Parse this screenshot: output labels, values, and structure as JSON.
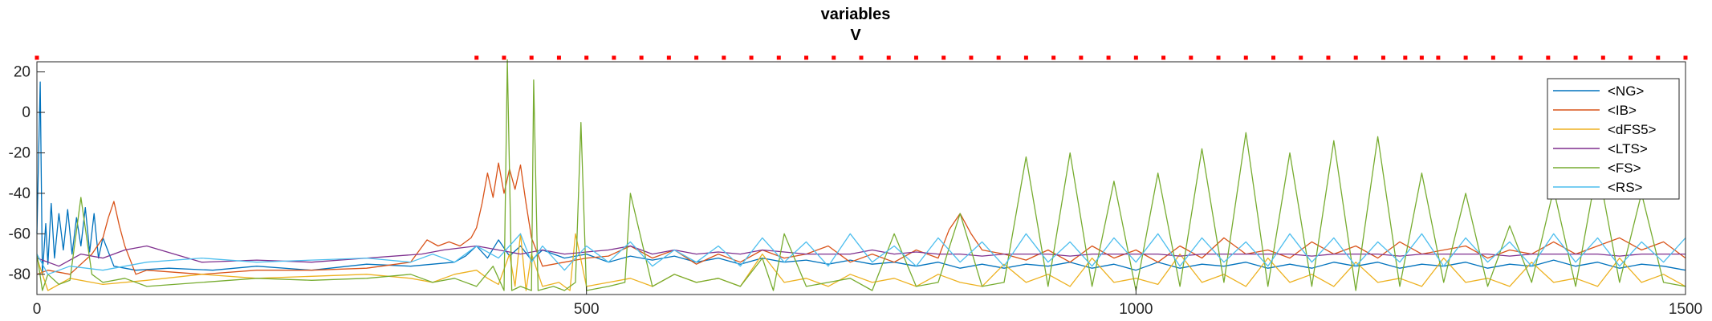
{
  "chart_data": {
    "type": "line",
    "title": "variables",
    "subtitle": "V",
    "xlabel": "",
    "ylabel": "",
    "xlim": [
      0,
      1500
    ],
    "ylim": [
      -90,
      25
    ],
    "x_ticks": [
      0,
      500,
      1000,
      1500
    ],
    "y_ticks": [
      20,
      0,
      -20,
      -40,
      -60,
      -80
    ],
    "grid": false,
    "legend_position": "top-right",
    "marker_series": {
      "color": "#ff0000",
      "y": 27,
      "x": [
        0,
        400,
        425,
        450,
        475,
        500,
        525,
        550,
        575,
        600,
        625,
        650,
        675,
        700,
        725,
        750,
        775,
        800,
        825,
        850,
        875,
        900,
        925,
        950,
        975,
        1000,
        1025,
        1050,
        1075,
        1100,
        1125,
        1150,
        1175,
        1200,
        1225,
        1245,
        1260,
        1275,
        1300,
        1325,
        1350,
        1375,
        1400,
        1425,
        1450,
        1475,
        1500
      ]
    },
    "series": [
      {
        "name": "<NG>",
        "color": "#0072bd",
        "x": [
          0,
          3,
          5,
          8,
          10,
          13,
          16,
          20,
          24,
          28,
          32,
          36,
          40,
          44,
          48,
          52,
          56,
          60,
          70,
          90,
          120,
          160,
          200,
          250,
          300,
          340,
          380,
          390,
          400,
          410,
          420,
          430,
          440,
          450,
          460,
          480,
          500,
          520,
          540,
          560,
          580,
          600,
          620,
          640,
          660,
          680,
          700,
          720,
          740,
          760,
          780,
          800,
          820,
          840,
          860,
          880,
          900,
          920,
          940,
          960,
          980,
          1000,
          1020,
          1040,
          1060,
          1080,
          1100,
          1120,
          1140,
          1160,
          1180,
          1200,
          1220,
          1240,
          1260,
          1280,
          1300,
          1320,
          1340,
          1360,
          1380,
          1400,
          1420,
          1440,
          1460,
          1480,
          1500
        ],
        "values": [
          -60,
          15,
          -80,
          -55,
          -75,
          -45,
          -72,
          -50,
          -68,
          -48,
          -70,
          -52,
          -66,
          -47,
          -69,
          -50,
          -72,
          -62,
          -76,
          -78,
          -77,
          -78,
          -76,
          -78,
          -75,
          -76,
          -74,
          -71,
          -66,
          -72,
          -63,
          -71,
          -66,
          -73,
          -68,
          -72,
          -70,
          -74,
          -71,
          -73,
          -71,
          -74,
          -72,
          -75,
          -72,
          -74,
          -73,
          -75,
          -73,
          -75,
          -74,
          -76,
          -74,
          -77,
          -75,
          -77,
          -75,
          -76,
          -74,
          -77,
          -75,
          -78,
          -74,
          -77,
          -75,
          -76,
          -74,
          -77,
          -75,
          -77,
          -74,
          -76,
          -74,
          -77,
          -75,
          -76,
          -74,
          -77,
          -75,
          -76,
          -73,
          -76,
          -74,
          -77,
          -75,
          -76,
          -78
        ]
      },
      {
        "name": "<IB>",
        "color": "#d95319",
        "x": [
          0,
          10,
          30,
          50,
          60,
          65,
          70,
          75,
          80,
          90,
          100,
          150,
          200,
          250,
          300,
          340,
          355,
          365,
          375,
          385,
          395,
          400,
          405,
          410,
          415,
          420,
          425,
          430,
          435,
          440,
          445,
          450,
          460,
          480,
          500,
          520,
          540,
          560,
          580,
          600,
          620,
          640,
          660,
          680,
          700,
          720,
          740,
          760,
          780,
          800,
          820,
          830,
          840,
          850,
          860,
          880,
          900,
          920,
          940,
          960,
          980,
          1000,
          1020,
          1040,
          1060,
          1080,
          1100,
          1120,
          1140,
          1160,
          1180,
          1200,
          1220,
          1240,
          1260,
          1280,
          1300,
          1320,
          1340,
          1360,
          1380,
          1400,
          1420,
          1440,
          1460,
          1480,
          1500
        ],
        "values": [
          -80,
          -78,
          -80,
          -70,
          -62,
          -52,
          -44,
          -56,
          -66,
          -80,
          -78,
          -80,
          -78,
          -78,
          -77,
          -74,
          -63,
          -66,
          -64,
          -66,
          -62,
          -57,
          -45,
          -30,
          -42,
          -25,
          -40,
          -28,
          -38,
          -26,
          -45,
          -62,
          -76,
          -74,
          -72,
          -71,
          -66,
          -72,
          -68,
          -75,
          -70,
          -74,
          -68,
          -72,
          -70,
          -66,
          -74,
          -70,
          -74,
          -68,
          -72,
          -58,
          -50,
          -60,
          -68,
          -70,
          -73,
          -68,
          -74,
          -66,
          -72,
          -68,
          -74,
          -66,
          -72,
          -62,
          -70,
          -68,
          -72,
          -64,
          -70,
          -66,
          -72,
          -64,
          -70,
          -68,
          -66,
          -72,
          -68,
          -70,
          -64,
          -70,
          -66,
          -62,
          -68,
          -64,
          -72
        ]
      },
      {
        "name": "<dFS5>",
        "color": "#edb120",
        "x": [
          0,
          10,
          30,
          60,
          100,
          150,
          200,
          250,
          300,
          340,
          360,
          380,
          400,
          410,
          420,
          430,
          435,
          440,
          445,
          450,
          460,
          475,
          485,
          490,
          500,
          520,
          540,
          560,
          580,
          600,
          620,
          640,
          660,
          680,
          700,
          720,
          740,
          760,
          780,
          800,
          820,
          840,
          860,
          880,
          900,
          920,
          940,
          960,
          980,
          1000,
          1020,
          1040,
          1060,
          1080,
          1100,
          1120,
          1140,
          1160,
          1180,
          1200,
          1220,
          1240,
          1260,
          1280,
          1300,
          1320,
          1340,
          1360,
          1380,
          1400,
          1420,
          1440,
          1460,
          1480,
          1500
        ],
        "values": [
          -72,
          -88,
          -82,
          -85,
          -83,
          -80,
          -82,
          -81,
          -80,
          -82,
          -84,
          -80,
          -78,
          -82,
          -85,
          -70,
          -86,
          -60,
          -88,
          -70,
          -86,
          -84,
          -88,
          -60,
          -86,
          -84,
          -82,
          -86,
          -80,
          -84,
          -82,
          -86,
          -70,
          -84,
          -82,
          -86,
          -80,
          -84,
          -82,
          -86,
          -80,
          -84,
          -86,
          -75,
          -84,
          -80,
          -86,
          -72,
          -84,
          -82,
          -85,
          -70,
          -84,
          -80,
          -86,
          -72,
          -84,
          -80,
          -86,
          -74,
          -84,
          -82,
          -86,
          -72,
          -84,
          -82,
          -86,
          -74,
          -84,
          -82,
          -86,
          -72,
          -84,
          -80,
          -86
        ]
      },
      {
        "name": "<LTS>",
        "color": "#7e2f8e",
        "x": [
          0,
          20,
          40,
          60,
          80,
          100,
          150,
          200,
          250,
          300,
          350,
          370,
          400,
          420,
          440,
          460,
          480,
          500,
          520,
          540,
          560,
          580,
          600,
          620,
          640,
          660,
          680,
          700,
          720,
          740,
          760,
          780,
          800,
          820,
          840,
          860,
          880,
          900,
          920,
          940,
          960,
          980,
          1000,
          1020,
          1040,
          1060,
          1080,
          1100,
          1120,
          1140,
          1160,
          1180,
          1200,
          1220,
          1240,
          1260,
          1280,
          1300,
          1320,
          1340,
          1360,
          1380,
          1400,
          1420,
          1440,
          1460,
          1480,
          1500
        ],
        "values": [
          -72,
          -76,
          -70,
          -72,
          -68,
          -66,
          -74,
          -73,
          -74,
          -72,
          -70,
          -68,
          -66,
          -68,
          -70,
          -68,
          -70,
          -69,
          -68,
          -66,
          -70,
          -68,
          -70,
          -69,
          -70,
          -68,
          -69,
          -70,
          -70,
          -70,
          -68,
          -70,
          -69,
          -70,
          -70,
          -71,
          -70,
          -70,
          -70,
          -71,
          -70,
          -70,
          -70,
          -70,
          -71,
          -70,
          -70,
          -70,
          -70,
          -70,
          -71,
          -70,
          -70,
          -70,
          -71,
          -70,
          -70,
          -70,
          -70,
          -71,
          -70,
          -70,
          -70,
          -70,
          -71,
          -70,
          -70,
          -70
        ]
      },
      {
        "name": "<FS>",
        "color": "#77ac30",
        "x": [
          0,
          5,
          10,
          20,
          30,
          40,
          50,
          60,
          80,
          100,
          150,
          200,
          250,
          300,
          340,
          360,
          380,
          400,
          415,
          425,
          428,
          432,
          440,
          450,
          452,
          456,
          470,
          480,
          490,
          495,
          500,
          520,
          535,
          540,
          560,
          580,
          600,
          620,
          640,
          660,
          670,
          680,
          700,
          720,
          740,
          760,
          780,
          800,
          820,
          840,
          860,
          880,
          900,
          920,
          940,
          960,
          980,
          1000,
          1020,
          1040,
          1060,
          1080,
          1100,
          1120,
          1140,
          1160,
          1180,
          1200,
          1220,
          1240,
          1260,
          1280,
          1300,
          1320,
          1340,
          1360,
          1380,
          1400,
          1420,
          1440,
          1460,
          1480,
          1500
        ],
        "values": [
          -70,
          -88,
          -80,
          -85,
          -83,
          -42,
          -80,
          -84,
          -82,
          -86,
          -84,
          -82,
          -83,
          -82,
          -80,
          -84,
          -82,
          -86,
          -76,
          -88,
          26,
          -88,
          -86,
          -88,
          16,
          -88,
          -86,
          -88,
          -84,
          -5,
          -88,
          -86,
          -84,
          -40,
          -86,
          -80,
          -84,
          -82,
          -86,
          -72,
          -88,
          -60,
          -86,
          -84,
          -82,
          -88,
          -60,
          -86,
          -84,
          -50,
          -86,
          -84,
          -22,
          -86,
          -20,
          -86,
          -34,
          -88,
          -30,
          -86,
          -18,
          -84,
          -10,
          -86,
          -20,
          -86,
          -14,
          -88,
          -12,
          -86,
          -30,
          -84,
          -40,
          -86,
          -56,
          -84,
          -38,
          -86,
          -26,
          -84,
          -40,
          -84,
          -86
        ]
      },
      {
        "name": "<RS>",
        "color": "#4dbeee",
        "x": [
          0,
          10,
          30,
          60,
          100,
          150,
          200,
          250,
          300,
          340,
          360,
          380,
          400,
          420,
          440,
          450,
          460,
          480,
          500,
          520,
          540,
          560,
          580,
          600,
          620,
          640,
          660,
          680,
          700,
          720,
          740,
          760,
          780,
          800,
          820,
          840,
          860,
          880,
          900,
          920,
          940,
          960,
          980,
          1000,
          1020,
          1040,
          1060,
          1080,
          1100,
          1120,
          1140,
          1160,
          1180,
          1200,
          1220,
          1240,
          1260,
          1280,
          1300,
          1320,
          1340,
          1360,
          1380,
          1400,
          1420,
          1440,
          1460,
          1480,
          1500
        ],
        "values": [
          -70,
          -80,
          -76,
          -78,
          -74,
          -72,
          -74,
          -73,
          -72,
          -74,
          -70,
          -74,
          -66,
          -72,
          -60,
          -74,
          -66,
          -78,
          -66,
          -74,
          -64,
          -76,
          -68,
          -74,
          -66,
          -76,
          -62,
          -74,
          -64,
          -76,
          -60,
          -74,
          -66,
          -76,
          -62,
          -74,
          -64,
          -76,
          -60,
          -74,
          -64,
          -76,
          -62,
          -74,
          -60,
          -76,
          -62,
          -74,
          -64,
          -76,
          -60,
          -74,
          -62,
          -76,
          -64,
          -74,
          -60,
          -76,
          -62,
          -74,
          -64,
          -76,
          -60,
          -74,
          -62,
          -76,
          -64,
          -74,
          -62
        ]
      }
    ]
  }
}
